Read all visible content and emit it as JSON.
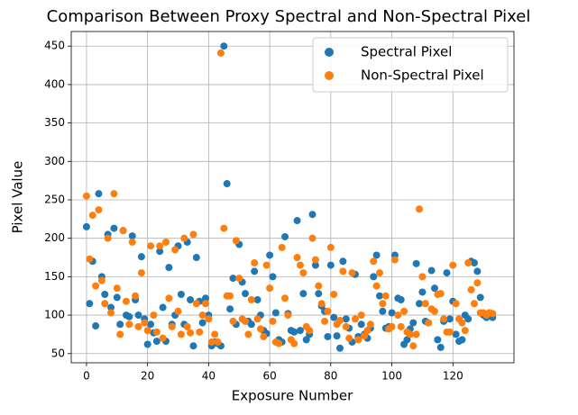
{
  "chart_data": {
    "type": "scatter",
    "title": "Comparison Between Proxy Spectral and Non-Spectral Pixel",
    "x_label": "Exposure Number",
    "y_label": "Pixel Value",
    "x": [
      0,
      1,
      2,
      3,
      4,
      5,
      6,
      7,
      8,
      9,
      10,
      11,
      12,
      13,
      14,
      15,
      16,
      17,
      18,
      19,
      20,
      21,
      22,
      23,
      24,
      25,
      26,
      27,
      28,
      29,
      30,
      31,
      32,
      33,
      34,
      35,
      36,
      37,
      38,
      39,
      40,
      41,
      42,
      43,
      44,
      45,
      46,
      47,
      48,
      49,
      50,
      51,
      52,
      53,
      54,
      55,
      56,
      57,
      58,
      59,
      60,
      61,
      62,
      63,
      64,
      65,
      66,
      67,
      68,
      69,
      70,
      71,
      72,
      73,
      74,
      75,
      76,
      77,
      78,
      79,
      80,
      81,
      82,
      83,
      84,
      85,
      86,
      87,
      88,
      89,
      90,
      91,
      92,
      93,
      94,
      95,
      96,
      97,
      98,
      99,
      100,
      101,
      102,
      103,
      104,
      105,
      106,
      107,
      108,
      109,
      110,
      111,
      112,
      113,
      114,
      115,
      116,
      117,
      118,
      119,
      120,
      121,
      122,
      123,
      124,
      125,
      126,
      127,
      128,
      129,
      130,
      131,
      132,
      133
    ],
    "series": [
      {
        "name": "Spectral Pixel",
        "color": "#1f77b4",
        "values": [
          215,
          115,
          170,
          86,
          258,
          150,
          127,
          205,
          110,
          213,
          123,
          88,
          210,
          100,
          98,
          203,
          120,
          100,
          176,
          95,
          62,
          88,
          77,
          66,
          183,
          110,
          66,
          162,
          88,
          100,
          190,
          127,
          88,
          195,
          120,
          60,
          175,
          118,
          90,
          122,
          100,
          60,
          65,
          63,
          60,
          450,
          271,
          108,
          148,
          88,
          192,
          143,
          128,
          92,
          88,
          157,
          120,
          100,
          80,
          76,
          178,
          150,
          103,
          68,
          65,
          202,
          102,
          80,
          78,
          223,
          80,
          128,
          68,
          75,
          231,
          165,
          128,
          112,
          105,
          72,
          165,
          97,
          73,
          57,
          170,
          95,
          83,
          65,
          153,
          72,
          88,
          75,
          70,
          83,
          150,
          178,
          125,
          105,
          83,
          85,
          103,
          178,
          122,
          120,
          62,
          68,
          82,
          90,
          167,
          115,
          130,
          92,
          90,
          158,
          135,
          68,
          58,
          92,
          155,
          95,
          118,
          75,
          66,
          68,
          100,
          95,
          170,
          168,
          157,
          123,
          100,
          97,
          103,
          97
        ]
      },
      {
        "name": "Non-Spectral Pixel",
        "color": "#ff7f0e",
        "values": [
          255,
          173,
          230,
          138,
          237,
          145,
          115,
          200,
          103,
          258,
          135,
          75,
          210,
          118,
          88,
          195,
          125,
          85,
          155,
          90,
          80,
          190,
          100,
          78,
          190,
          70,
          195,
          122,
          85,
          185,
          105,
          75,
          200,
          85,
          77,
          205,
          115,
          78,
          100,
          115,
          95,
          65,
          75,
          65,
          441,
          213,
          125,
          125,
          92,
          197,
          148,
          95,
          92,
          75,
          120,
          168,
          95,
          82,
          72,
          165,
          135,
          92,
          65,
          63,
          188,
          122,
          100,
          68,
          63,
          175,
          165,
          155,
          85,
          80,
          200,
          172,
          138,
          115,
          92,
          105,
          188,
          127,
          88,
          93,
          157,
          85,
          70,
          155,
          95,
          68,
          100,
          73,
          80,
          88,
          170,
          138,
          155,
          115,
          125,
          82,
          85,
          172,
          100,
          85,
          105,
          78,
          75,
          60,
          75,
          238,
          150,
          115,
          90,
          108,
          105,
          127,
          128,
          95,
          78,
          78,
          165,
          115,
          95,
          90,
          80,
          168,
          133,
          115,
          142,
          103,
          103,
          100,
          103,
          102
        ]
      }
    ],
    "xlim": [
      -5,
      140
    ],
    "xticks": [
      0,
      20,
      40,
      60,
      80,
      100,
      120
    ],
    "ylim": [
      38,
      469
    ],
    "yticks": [
      50,
      100,
      150,
      200,
      250,
      300,
      350,
      400,
      450
    ],
    "grid": true,
    "legend": "upper right"
  }
}
